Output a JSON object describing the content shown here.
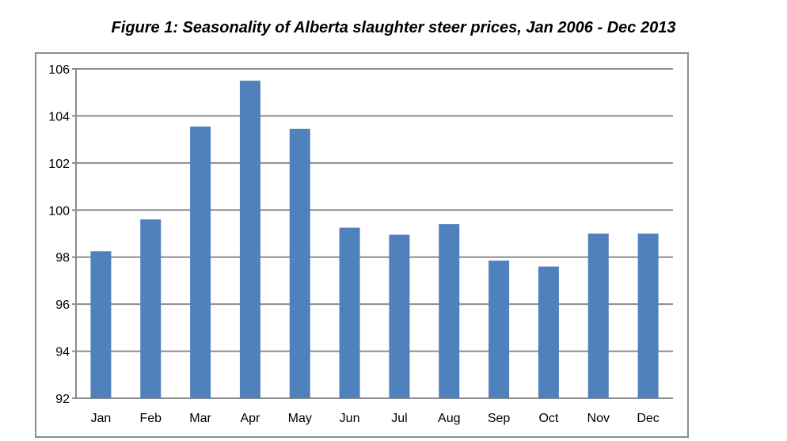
{
  "chart_data": {
    "type": "bar",
    "title": "Figure 1: Seasonality of Alberta slaughter steer prices, Jan 2006 - Dec 2013",
    "xlabel": "",
    "ylabel": "",
    "categories": [
      "Jan",
      "Feb",
      "Mar",
      "Apr",
      "May",
      "Jun",
      "Jul",
      "Aug",
      "Sep",
      "Oct",
      "Nov",
      "Dec"
    ],
    "series": [
      {
        "values": [
          98.25,
          99.6,
          103.55,
          105.5,
          103.45,
          99.25,
          98.95,
          99.4,
          97.85,
          97.6,
          99.0,
          99.0
        ]
      }
    ],
    "ylim": [
      92,
      106
    ],
    "yticks": [
      92,
      94,
      96,
      98,
      100,
      102,
      104,
      106
    ],
    "grid": true,
    "legend": "none",
    "bar_color": "#4f81bd",
    "grid_color": "#8c8c8c"
  }
}
